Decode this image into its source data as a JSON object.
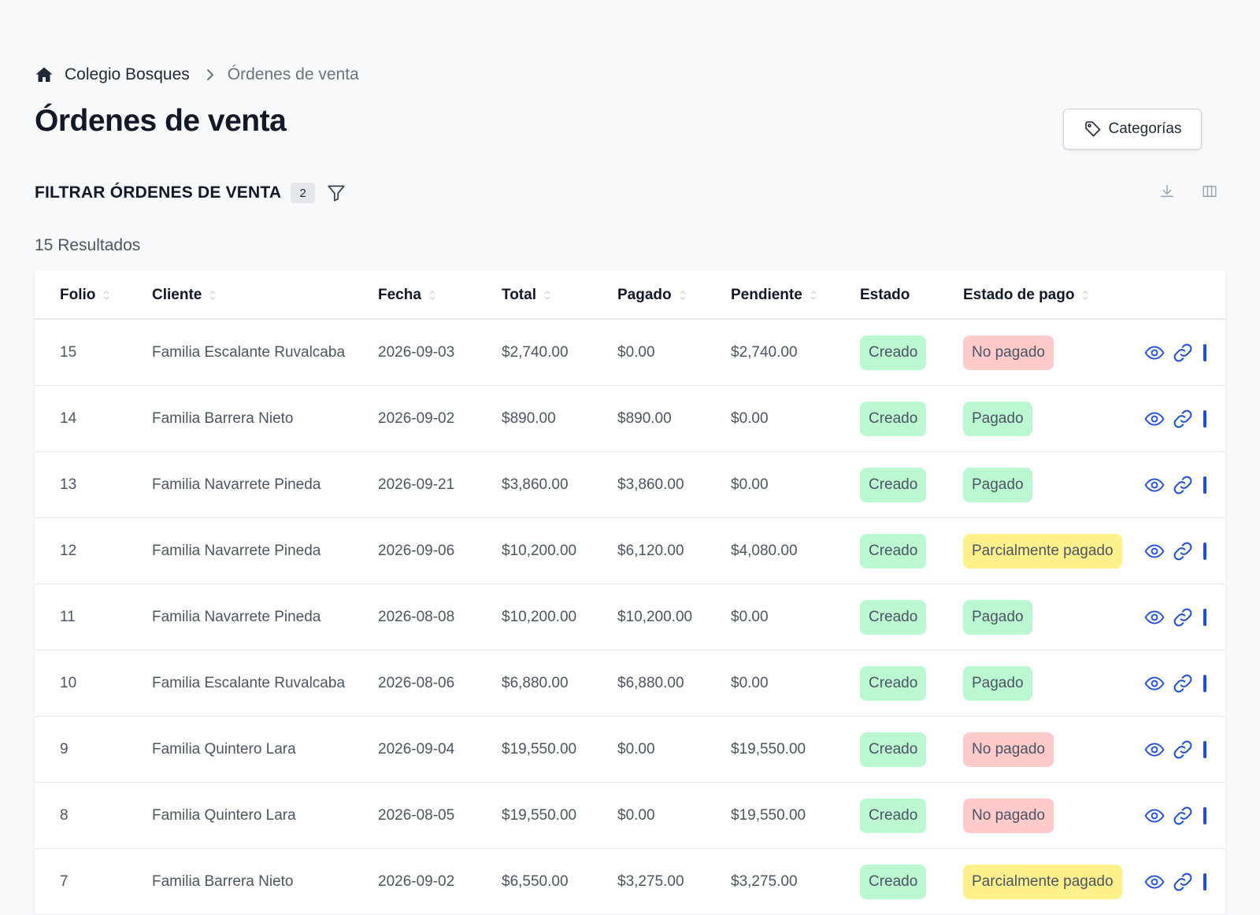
{
  "breadcrumb": {
    "home_icon": "home-icon",
    "root": "Colegio Bosques",
    "separator_icon": "chevron-right-icon",
    "current": "Órdenes de venta"
  },
  "page_title": "Órdenes de venta",
  "categories_button": {
    "label": "Categorías",
    "icon": "tag-icon"
  },
  "filter": {
    "title": "FILTRAR ÓRDENES DE VENTA",
    "count": "2",
    "icon": "filter-icon"
  },
  "toolbar": {
    "download_icon": "download-icon",
    "columns_icon": "columns-icon"
  },
  "results_text": "15 Resultados",
  "table": {
    "columns": [
      {
        "key": "folio",
        "label": "Folio",
        "sortable": true
      },
      {
        "key": "cliente",
        "label": "Cliente",
        "sortable": true
      },
      {
        "key": "fecha",
        "label": "Fecha",
        "sortable": true
      },
      {
        "key": "total",
        "label": "Total",
        "sortable": true
      },
      {
        "key": "pagado",
        "label": "Pagado",
        "sortable": true
      },
      {
        "key": "pendiente",
        "label": "Pendiente",
        "sortable": true
      },
      {
        "key": "estado",
        "label": "Estado",
        "sortable": false
      },
      {
        "key": "estado_pago",
        "label": "Estado de pago",
        "sortable": true
      }
    ],
    "rows": [
      {
        "folio": "15",
        "cliente": "Familia Escalante Ruvalcaba",
        "fecha": "2026-09-03",
        "total": "$2,740.00",
        "pagado": "$0.00",
        "pendiente": "$2,740.00",
        "estado": "Creado",
        "estado_pago": "No pagado",
        "pago_color": "red"
      },
      {
        "folio": "14",
        "cliente": "Familia Barrera Nieto",
        "fecha": "2026-09-02",
        "total": "$890.00",
        "pagado": "$890.00",
        "pendiente": "$0.00",
        "estado": "Creado",
        "estado_pago": "Pagado",
        "pago_color": "green"
      },
      {
        "folio": "13",
        "cliente": "Familia Navarrete Pineda",
        "fecha": "2026-09-21",
        "total": "$3,860.00",
        "pagado": "$3,860.00",
        "pendiente": "$0.00",
        "estado": "Creado",
        "estado_pago": "Pagado",
        "pago_color": "green"
      },
      {
        "folio": "12",
        "cliente": "Familia Navarrete Pineda",
        "fecha": "2026-09-06",
        "total": "$10,200.00",
        "pagado": "$6,120.00",
        "pendiente": "$4,080.00",
        "estado": "Creado",
        "estado_pago": "Parcialmente pagado",
        "pago_color": "yellow"
      },
      {
        "folio": "11",
        "cliente": "Familia Navarrete Pineda",
        "fecha": "2026-08-08",
        "total": "$10,200.00",
        "pagado": "$10,200.00",
        "pendiente": "$0.00",
        "estado": "Creado",
        "estado_pago": "Pagado",
        "pago_color": "green"
      },
      {
        "folio": "10",
        "cliente": "Familia Escalante Ruvalcaba",
        "fecha": "2026-08-06",
        "total": "$6,880.00",
        "pagado": "$6,880.00",
        "pendiente": "$0.00",
        "estado": "Creado",
        "estado_pago": "Pagado",
        "pago_color": "green"
      },
      {
        "folio": "9",
        "cliente": "Familia Quintero Lara",
        "fecha": "2026-09-04",
        "total": "$19,550.00",
        "pagado": "$0.00",
        "pendiente": "$19,550.00",
        "estado": "Creado",
        "estado_pago": "No pagado",
        "pago_color": "red"
      },
      {
        "folio": "8",
        "cliente": "Familia Quintero Lara",
        "fecha": "2026-08-05",
        "total": "$19,550.00",
        "pagado": "$0.00",
        "pendiente": "$19,550.00",
        "estado": "Creado",
        "estado_pago": "No pagado",
        "pago_color": "red"
      },
      {
        "folio": "7",
        "cliente": "Familia Barrera Nieto",
        "fecha": "2026-09-02",
        "total": "$6,550.00",
        "pagado": "$3,275.00",
        "pendiente": "$3,275.00",
        "estado": "Creado",
        "estado_pago": "Parcialmente pagado",
        "pago_color": "yellow"
      }
    ],
    "row_action_icons": [
      "eye-icon",
      "link-icon"
    ]
  },
  "colors": {
    "badge_green": "#bbf7d0",
    "badge_red": "#fecaca",
    "badge_yellow": "#fef08a",
    "action_blue": "#1d4ed8"
  }
}
